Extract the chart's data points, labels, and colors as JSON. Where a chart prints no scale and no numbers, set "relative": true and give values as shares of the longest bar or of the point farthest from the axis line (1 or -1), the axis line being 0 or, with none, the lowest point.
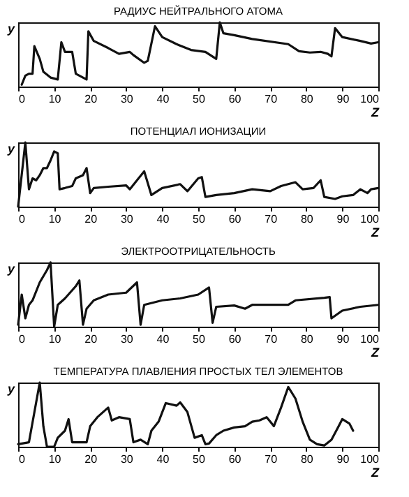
{
  "chart_data": [
    {
      "type": "line",
      "title": "РАДИУС НЕЙТРАЛЬНОГО АТОМА",
      "xlabel": "Z",
      "ylabel": "y",
      "relative": true,
      "xlim": [
        0,
        100
      ],
      "xticks": [
        0,
        10,
        20,
        30,
        40,
        50,
        60,
        70,
        80,
        90,
        100
      ],
      "x": [
        1,
        2,
        3,
        4,
        4.5,
        6,
        7,
        9,
        11,
        12,
        13,
        15,
        16,
        17,
        19,
        19.5,
        21,
        25,
        28,
        31,
        32,
        35,
        36,
        38,
        40,
        44,
        48,
        52,
        55,
        56,
        57,
        60,
        65,
        75,
        78,
        81,
        84,
        86,
        87,
        88,
        90,
        95,
        98,
        100
      ],
      "series": [
        {
          "color": "#111111",
          "values": [
            0.03,
            0.17,
            0.2,
            0.2,
            0.63,
            0.43,
            0.23,
            0.14,
            0.11,
            0.69,
            0.54,
            0.54,
            0.2,
            0.17,
            0.11,
            0.86,
            0.71,
            0.6,
            0.51,
            0.54,
            0.49,
            0.37,
            0.4,
            0.94,
            0.77,
            0.66,
            0.57,
            0.54,
            0.43,
            1,
            0.83,
            0.8,
            0.74,
            0.66,
            0.55,
            0.53,
            0.54,
            0.51,
            0.47,
            0.91,
            0.77,
            0.71,
            0.67,
            0.69
          ]
        }
      ]
    },
    {
      "type": "line",
      "title": "ПОТЕНЦИАЛ ИОНИЗАЦИИ",
      "xlabel": "Z",
      "ylabel": "y",
      "relative": true,
      "xlim": [
        0,
        100
      ],
      "xticks": [
        0,
        10,
        20,
        30,
        40,
        50,
        60,
        70,
        80,
        90,
        100
      ],
      "x": [
        0,
        2,
        3,
        4,
        5,
        6,
        7,
        8,
        9,
        10,
        11,
        11.5,
        13,
        15,
        16,
        18,
        19,
        20,
        21,
        25,
        30,
        31,
        33,
        35,
        37,
        40,
        45,
        47,
        50,
        51,
        52,
        55,
        60,
        65,
        70,
        73,
        77,
        79,
        82,
        84,
        85,
        88,
        90,
        93,
        95,
        97,
        98,
        100
      ],
      "series": [
        {
          "color": "#111111",
          "values": [
            0,
            1,
            0.27,
            0.44,
            0.41,
            0.49,
            0.6,
            0.6,
            0.72,
            0.86,
            0.83,
            0.27,
            0.29,
            0.32,
            0.44,
            0.49,
            0.6,
            0.21,
            0.29,
            0.31,
            0.33,
            0.27,
            0.41,
            0.55,
            0.18,
            0.29,
            0.35,
            0.24,
            0.44,
            0.46,
            0.15,
            0.18,
            0.21,
            0.27,
            0.24,
            0.32,
            0.38,
            0.27,
            0.29,
            0.41,
            0.15,
            0.12,
            0.16,
            0.18,
            0.27,
            0.21,
            0.27,
            0.29
          ]
        }
      ]
    },
    {
      "type": "line",
      "title": "ЭЛЕКТРООТРИЦАТЕЛЬНОСТЬ",
      "xlabel": "Z",
      "ylabel": "y",
      "relative": true,
      "xlim": [
        0,
        100
      ],
      "xticks": [
        0,
        10,
        20,
        30,
        40,
        50,
        60,
        70,
        80,
        90,
        100
      ],
      "x": [
        0,
        1,
        2,
        3,
        4,
        6,
        8,
        9,
        10,
        11,
        13,
        16,
        17,
        18,
        19,
        21,
        25,
        30,
        33,
        34,
        35,
        40,
        45,
        50,
        53,
        54,
        55,
        60,
        63,
        65,
        75,
        77,
        85,
        86.5,
        87,
        90,
        95,
        100
      ],
      "series": [
        {
          "color": "#111111",
          "values": [
            0.03,
            0.5,
            0.13,
            0.34,
            0.41,
            0.69,
            0.88,
            1,
            0,
            0.34,
            0.44,
            0.63,
            0.72,
            0.03,
            0.28,
            0.41,
            0.5,
            0.53,
            0.69,
            0.03,
            0.34,
            0.41,
            0.44,
            0.5,
            0.61,
            0.06,
            0.31,
            0.33,
            0.28,
            0.34,
            0.34,
            0.41,
            0.45,
            0.46,
            0.13,
            0.25,
            0.31,
            0.34
          ]
        }
      ]
    },
    {
      "type": "line",
      "title": "ТЕМПЕРАТУРА ПЛАВЛЕНИЯ ПРОСТЫХ ТЕЛ ЭЛЕМЕНТОВ",
      "xlabel": "Z",
      "ylabel": "y",
      "relative": true,
      "xlim": [
        0,
        100
      ],
      "xticks": [
        0,
        10,
        20,
        30,
        40,
        50,
        60,
        70,
        80,
        90,
        100
      ],
      "x": [
        0,
        3,
        6,
        7,
        8,
        10,
        11,
        13,
        14,
        15,
        19,
        20,
        22,
        25,
        26,
        28,
        31,
        32,
        34,
        36,
        37,
        39,
        41,
        44,
        45,
        47,
        49,
        51,
        52,
        53,
        55,
        57,
        60,
        63,
        65,
        67,
        69,
        70,
        71,
        73,
        75,
        77,
        79,
        81,
        83,
        85,
        87,
        89,
        90,
        92,
        93
      ],
      "series": [
        {
          "color": "#111111",
          "values": [
            0.04,
            0.07,
            1,
            0.32,
            0,
            0,
            0.14,
            0.25,
            0.43,
            0.07,
            0.07,
            0.32,
            0.46,
            0.61,
            0.41,
            0.46,
            0.43,
            0.07,
            0.11,
            0.04,
            0.25,
            0.39,
            0.68,
            0.64,
            0.69,
            0.54,
            0.14,
            0.18,
            0.04,
            0.05,
            0.18,
            0.25,
            0.3,
            0.32,
            0.39,
            0.41,
            0.46,
            0.39,
            0.32,
            0.61,
            0.93,
            0.75,
            0.39,
            0.11,
            0.04,
            0.02,
            0.11,
            0.32,
            0.43,
            0.36,
            0.25
          ]
        }
      ]
    }
  ]
}
